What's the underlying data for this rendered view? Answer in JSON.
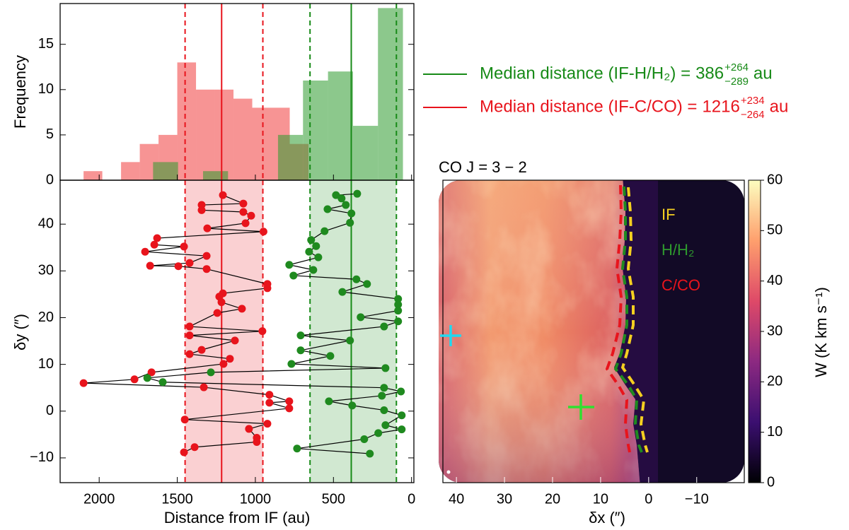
{
  "chart_data": [
    {
      "type": "histogram",
      "ylabel": "Frequency",
      "xlim": [
        2250,
        -15
      ],
      "ylim": [
        0,
        19.5
      ],
      "yticks": [
        0,
        5,
        10,
        15
      ],
      "series": [
        {
          "color": "#f03c3c",
          "bins": [
            660,
            780,
            900,
            1020,
            1140,
            1260,
            1380,
            1500,
            1620,
            1740,
            1860,
            1980,
            2100
          ],
          "counts": [
            4,
            8,
            8,
            9,
            10,
            10,
            13,
            5,
            4,
            2,
            0,
            1
          ]
        },
        {
          "color": "#2e9a2e",
          "bins": [
            55,
            215,
            375,
            535,
            695,
            855,
            1015,
            1175,
            1335,
            1495,
            1655
          ],
          "counts": [
            19,
            6,
            12,
            11,
            5,
            0,
            0,
            1,
            0,
            2
          ]
        }
      ],
      "medians": [
        {
          "name": "Median distance (IF-H/H₂) =",
          "value": 386,
          "lower": 97,
          "upper": 650,
          "error_labels": [
            "+264",
            "−289"
          ],
          "unit": "au",
          "color": "#178a17"
        },
        {
          "name": "Median distance (IF-C/CO) =",
          "value": 1216,
          "lower": 952,
          "upper": 1450,
          "error_labels": [
            "+234",
            "−264"
          ],
          "unit": "au",
          "color": "#e8141c"
        }
      ]
    },
    {
      "type": "line",
      "xlabel": "Distance from IF (au)",
      "ylabel": "δy (″)",
      "xlim": [
        2250,
        -15
      ],
      "xticks": [
        2000,
        1500,
        1000,
        500,
        0
      ],
      "ylim": [
        -15.3,
        49.4
      ],
      "yticks": [
        {
          "value": -10,
          "label": "−10"
        },
        0,
        10,
        20,
        30,
        40
      ],
      "line_color": "#000000",
      "series": [
        {
          "color": "#e8141c",
          "x": [
            1208,
            1077,
            1344,
            1344,
            1077,
            1027,
            1063,
            1308,
            948,
            1629,
            1647,
            1457,
            1706,
            1312,
            1421,
            1674,
            1493,
            1312,
            923,
            923,
            1208,
            1231,
            1217,
            1086,
            1244,
            1421,
            955,
            1421,
            1131,
            1344,
            1421,
            1163,
            1204,
            1665,
            1774,
            2100,
            1330,
            910,
            783,
            910,
            783,
            1452,
            923,
            1041,
            991,
            991,
            1389,
            1457
          ],
          "y": [
            46.2,
            44.4,
            44.1,
            43.0,
            42.6,
            41.8,
            40.2,
            39.1,
            38.4,
            37.0,
            35.6,
            35.2,
            34.1,
            33.2,
            31.7,
            31.1,
            31.0,
            30.4,
            27.2,
            26.3,
            25.2,
            24.5,
            23.3,
            21.9,
            21.0,
            18.1,
            17.1,
            16.2,
            15.1,
            13.1,
            12.2,
            11.2,
            10.1,
            8.3,
            6.8,
            6.0,
            5.1,
            3.5,
            2.1,
            1.8,
            0.6,
            -1.8,
            -2.7,
            -3.8,
            -5.7,
            -6.6,
            -7.7,
            -8.8
          ]
        },
        {
          "color": "#1f8a1f",
          "x": [
            348,
            484,
            448,
            421,
            538,
            385,
            394,
            557,
            643,
            611,
            656,
            597,
            783,
            629,
            756,
            353,
            285,
            443,
            86,
            86,
            86,
            326,
            86,
            176,
            710,
            394,
            710,
            520,
            769,
            167,
            1285,
            1692,
            1593,
            176,
            68,
            190,
            529,
            380,
            176,
            63,
            167,
            63,
            213,
            303,
            733,
            267
          ],
          "y": [
            46.5,
            46.2,
            45.5,
            44.1,
            43.2,
            42.3,
            40.3,
            38.5,
            36.6,
            35.3,
            34.1,
            32.9,
            31.3,
            30.2,
            29.0,
            28.2,
            27.2,
            25.5,
            24.0,
            22.8,
            21.5,
            20.1,
            19.2,
            18.1,
            16.2,
            15.1,
            13.0,
            11.8,
            10.1,
            9.2,
            8.3,
            7.1,
            6.2,
            5.0,
            4.2,
            3.3,
            2.1,
            1.2,
            0.2,
            -0.9,
            -3.0,
            -3.9,
            -4.7,
            -6.0,
            -8.0,
            -9.1
          ]
        }
      ]
    },
    {
      "type": "image",
      "title": "CO J = 3 − 2",
      "xlabel": "δx (″)",
      "xlim": [
        43.7,
        -19.9
      ],
      "xticks": [
        40,
        30,
        20,
        10,
        0,
        {
          "value": -10,
          "label": "−10"
        }
      ],
      "colorbar": {
        "label": "W (K km s⁻¹)",
        "lim": [
          0,
          60
        ],
        "ticks": [
          0,
          10,
          20,
          30,
          40,
          50,
          60
        ]
      },
      "annotations": [
        {
          "text": "IF",
          "color": "#f5d020"
        },
        {
          "text": "H/H₂",
          "color": "#2e9a2e"
        },
        {
          "text": "C/CO",
          "color": "#e8141c"
        }
      ]
    }
  ]
}
